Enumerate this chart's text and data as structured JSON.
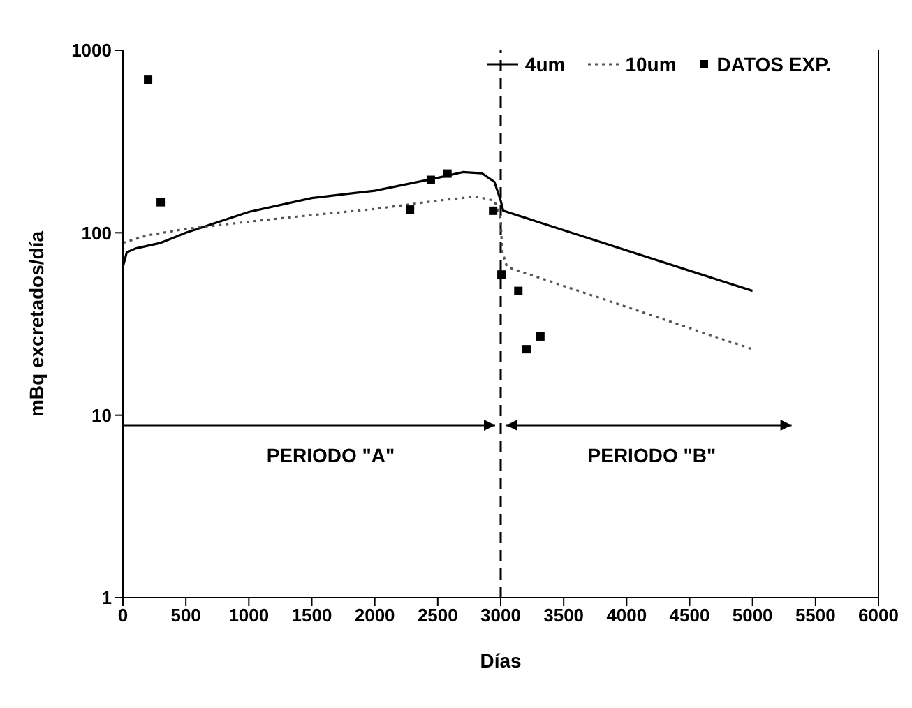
{
  "chart_data": {
    "type": "line",
    "xlabel": "Días",
    "ylabel": "mBq excretados/día",
    "xlim": [
      0,
      6000
    ],
    "xticks": [
      0,
      500,
      1000,
      1500,
      2000,
      2500,
      3000,
      3500,
      4000,
      4500,
      5000,
      5500,
      6000
    ],
    "ylim": [
      1,
      1000
    ],
    "yticks": [
      1,
      10,
      100,
      1000
    ],
    "log": "y",
    "grid": false,
    "legend": "top right",
    "series": [
      {
        "name": "4um",
        "color": "#000000",
        "line_style": "solid",
        "x": [
          0,
          30,
          100,
          300,
          500,
          1000,
          1500,
          2000,
          2500,
          2700,
          2850,
          2950,
          3000,
          3020,
          5000
        ],
        "values": [
          65,
          78,
          82,
          88,
          100,
          130,
          155,
          170,
          200,
          215,
          212,
          190,
          150,
          132,
          48
        ]
      },
      {
        "name": "10um",
        "color": "#555555",
        "line_style": "dotted",
        "x": [
          0,
          200,
          500,
          1000,
          1500,
          2000,
          2500,
          2800,
          2950,
          3000,
          3010,
          3050,
          5000
        ],
        "values": [
          88,
          97,
          105,
          115,
          125,
          135,
          150,
          158,
          150,
          120,
          80,
          65,
          23
        ]
      },
      {
        "name": "DATOS EXP.",
        "type": "scatter",
        "color": "#000000",
        "marker": "square",
        "x": [
          200,
          300,
          2280,
          2445,
          2577,
          2940,
          3006,
          3140,
          3205,
          3315
        ],
        "values": [
          690,
          147,
          134,
          195,
          211,
          132,
          59,
          48,
          23,
          27
        ]
      }
    ],
    "ref_lines": [
      {
        "axis": "x",
        "value": 3000,
        "line_style": "dashed",
        "color": "#000000"
      }
    ],
    "annotations": [
      "PERIODO \"A\"",
      "PERIODO \"B\""
    ]
  }
}
